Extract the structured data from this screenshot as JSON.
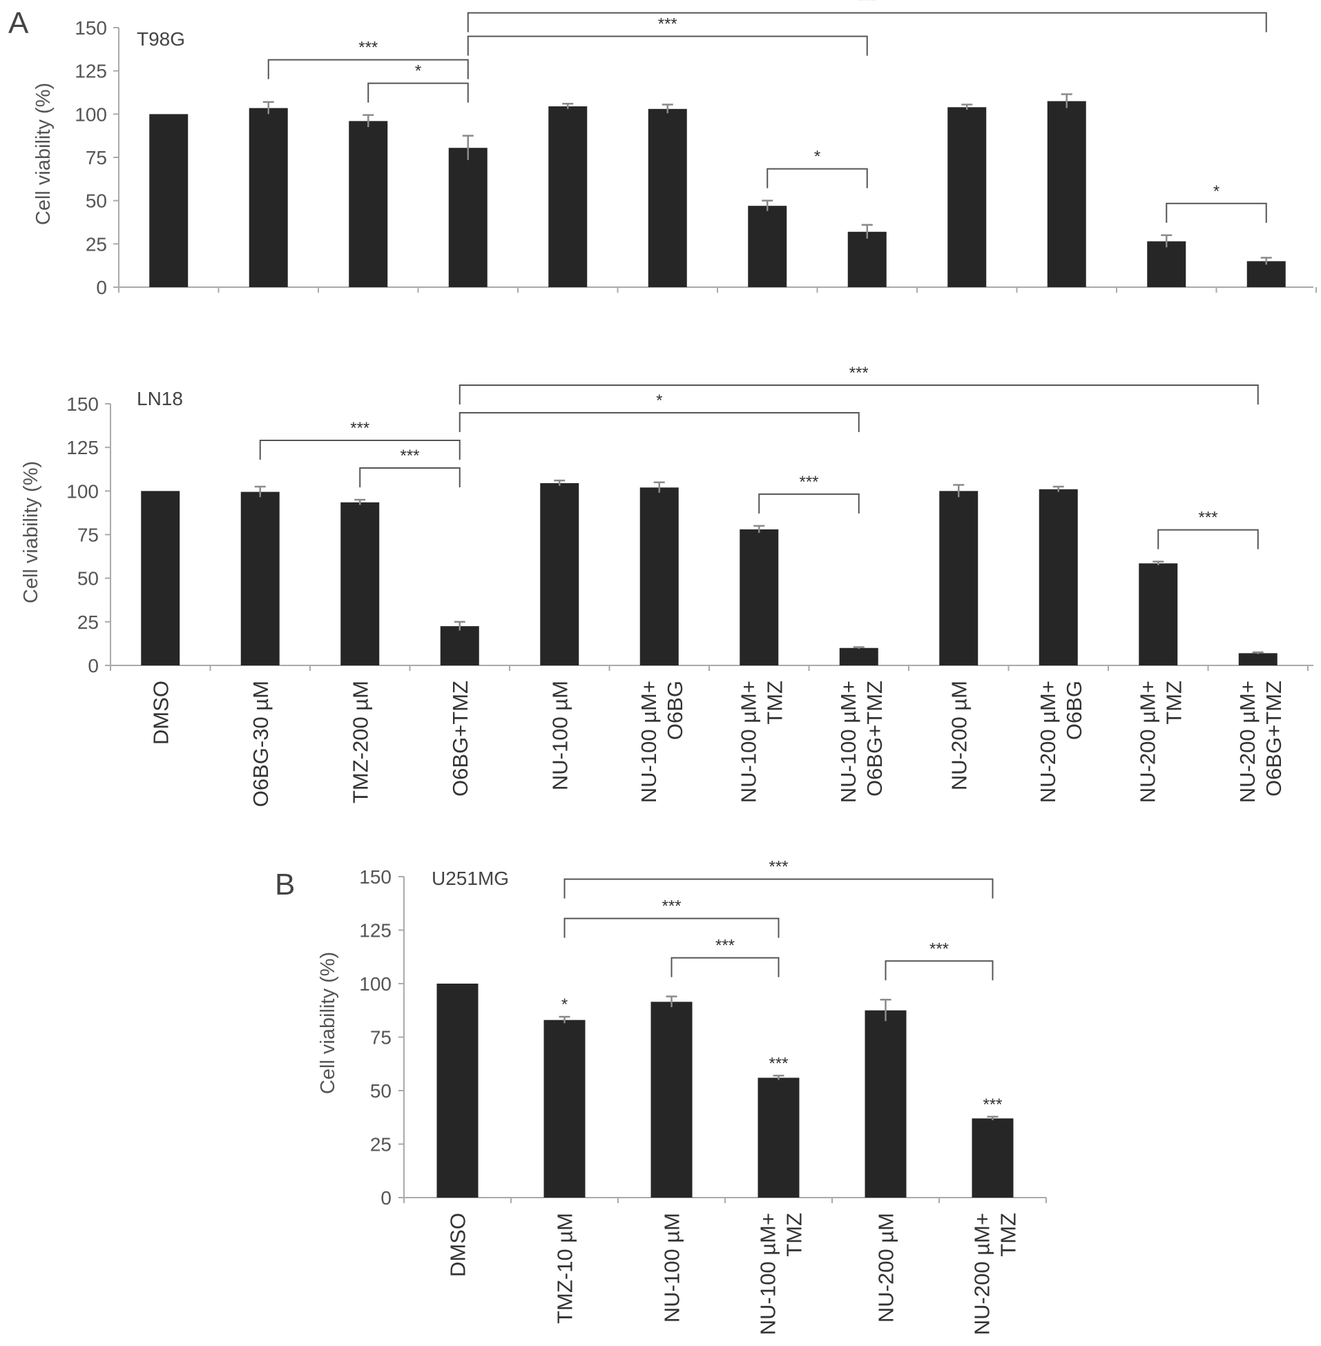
{
  "figure": {
    "panel_letters": [
      "A",
      "B"
    ]
  },
  "chart_data": [
    {
      "type": "bar",
      "cell_line": "T98G",
      "panel": "A",
      "ylabel": "Cell viability (%)",
      "ylim": [
        0,
        150
      ],
      "yticks": [
        "0",
        "25",
        "50",
        "75",
        "100",
        "125",
        "150"
      ],
      "categories": [
        "DMSO",
        "O6BG-30 µM",
        "TMZ-200 µM",
        "O6BG+TMZ",
        "NU-100 µM",
        "NU-100 µM+ O6BG",
        "NU-100 µM+ TMZ",
        "NU-100 µM+ O6BG+TMZ",
        "NU-200 µM",
        "NU-200 µM+ O6BG",
        "NU-200 µM+ TMZ",
        "NU-200 µM+ O6BG+TMZ"
      ],
      "values": [
        100,
        103.5,
        96,
        80.5,
        104.5,
        103,
        47,
        32,
        104,
        107.5,
        26.5,
        15
      ],
      "errors": [
        0.3,
        3.5,
        3.5,
        7,
        1.5,
        2.5,
        3,
        4,
        1.5,
        4,
        3.5,
        2
      ],
      "significance": [
        {
          "from": 1,
          "to": 3,
          "label": "***"
        },
        {
          "from": 2,
          "to": 3,
          "label": "*"
        },
        {
          "from": 3,
          "to": 7,
          "label": "***"
        },
        {
          "from": 3,
          "to": 11,
          "label": "***"
        },
        {
          "from": 6,
          "to": 7,
          "label": "*"
        },
        {
          "from": 10,
          "to": 11,
          "label": "*"
        }
      ],
      "point_marks": []
    },
    {
      "type": "bar",
      "cell_line": "LN18",
      "panel": "",
      "ylabel": "Cell viability (%)",
      "ylim": [
        0,
        150
      ],
      "yticks": [
        "0",
        "25",
        "50",
        "75",
        "100",
        "125",
        "150"
      ],
      "categories": [
        "DMSO",
        "O6BG-30 µM",
        "TMZ-200 µM",
        "O6BG+TMZ",
        "NU-100 µM",
        "NU-100 µM+ O6BG",
        "NU-100 µM+ TMZ",
        "NU-100 µM+ O6BG+TMZ",
        "NU-200 µM",
        "NU-200 µM+ O6BG",
        "NU-200 µM+ TMZ",
        "NU-200 µM+ O6BG+TMZ"
      ],
      "values": [
        100,
        99.5,
        93.5,
        22.5,
        104.5,
        102,
        78,
        10,
        100,
        101,
        58.5,
        7
      ],
      "errors": [
        0.3,
        3,
        1.5,
        2.5,
        1.5,
        3,
        2,
        0.5,
        3.5,
        1.5,
        1,
        0.5
      ],
      "significance": [
        {
          "from": 1,
          "to": 3,
          "label": "***"
        },
        {
          "from": 2,
          "to": 3,
          "label": "***"
        },
        {
          "from": 3,
          "to": 7,
          "label": "*"
        },
        {
          "from": 3,
          "to": 11,
          "label": "***"
        },
        {
          "from": 6,
          "to": 7,
          "label": "***"
        },
        {
          "from": 10,
          "to": 11,
          "label": "***"
        }
      ],
      "point_marks": []
    },
    {
      "type": "bar",
      "cell_line": "U251MG",
      "panel": "B",
      "ylabel": "Cell viability (%)",
      "ylim": [
        0,
        150
      ],
      "yticks": [
        "0",
        "25",
        "50",
        "75",
        "100",
        "125",
        "150"
      ],
      "categories": [
        "DMSO",
        "TMZ-10 µM",
        "NU-100 µM",
        "NU-100 µM+ TMZ",
        "NU-200 µM",
        "NU-200 µM+ TMZ"
      ],
      "values": [
        100,
        83,
        91.5,
        56,
        87.5,
        37
      ],
      "errors": [
        0.3,
        1.5,
        2.5,
        1,
        5,
        0.8
      ],
      "significance": [
        {
          "from": 1,
          "to": 3,
          "label": "***"
        },
        {
          "from": 1,
          "to": 5,
          "label": "***"
        },
        {
          "from": 2,
          "to": 3,
          "label": "***"
        },
        {
          "from": 4,
          "to": 5,
          "label": "***"
        }
      ],
      "point_marks": [
        {
          "index": 1,
          "label": "*"
        },
        {
          "index": 3,
          "label": "***"
        },
        {
          "index": 5,
          "label": "***"
        }
      ]
    }
  ]
}
